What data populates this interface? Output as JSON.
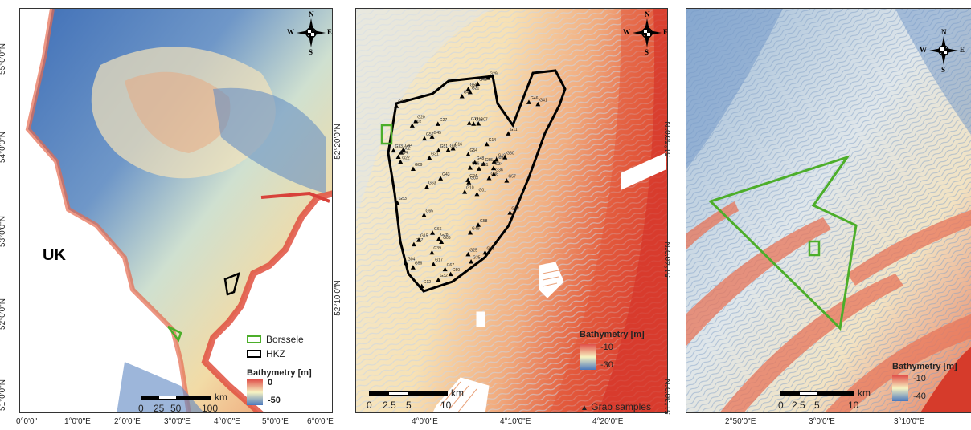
{
  "panel1": {
    "y_ticks": [
      "55°0'0\"N",
      "54°0'0\"N",
      "53°0'0\"N",
      "52°0'0\"N",
      "51°0'0\"N"
    ],
    "x_ticks": [
      "0°0'0\"",
      "1°0'0\"E",
      "2°0'0\"E",
      "3°0'0\"E",
      "4°0'0\"E",
      "5°0'0\"E",
      "6°0'0\"E"
    ],
    "country_label": "UK",
    "legend": {
      "borssele": "Borssele",
      "hkz": "HKZ",
      "borssele_color": "#4cae2a",
      "hkz_color": "#000000"
    },
    "bathymetry": {
      "title": "Bathymetry [m]",
      "max": "0",
      "min": "-50"
    },
    "scale": {
      "labels": [
        "0",
        "25",
        "50",
        "100"
      ],
      "unit": "km"
    },
    "compass": {
      "n": "N",
      "s": "S",
      "e": "E",
      "w": "W"
    }
  },
  "panel2": {
    "y_ticks": [
      "52°20'0\"N",
      "52°10'0\"N"
    ],
    "x_ticks": [
      "4°0'0\"E",
      "4°10'0\"E",
      "4°20'0\"E"
    ],
    "bathymetry": {
      "title": "Bathymetry [m]",
      "max": "-10",
      "min": "-30"
    },
    "scale": {
      "labels": [
        "0",
        "2.5",
        "5",
        "10"
      ],
      "unit": "km"
    },
    "grab_legend": "Grab samples",
    "grab_symbol": "▲",
    "compass": {
      "n": "N",
      "s": "S",
      "e": "E",
      "w": "W"
    },
    "samples": [
      "G01",
      "G02",
      "G03",
      "G04",
      "G05",
      "G06",
      "G07",
      "G08",
      "G09",
      "G10",
      "G11",
      "G12",
      "G13",
      "G14",
      "G15",
      "G16",
      "G17",
      "G18",
      "G19",
      "G20",
      "G21",
      "G22",
      "G23",
      "G24",
      "G25",
      "G26",
      "G27",
      "G28",
      "G29",
      "G30",
      "G31",
      "G32",
      "G33",
      "G34",
      "G35",
      "G36",
      "G37",
      "G38",
      "G39",
      "G40",
      "G41",
      "G42",
      "G43",
      "G44",
      "G45",
      "G46",
      "G47",
      "G48",
      "G49",
      "G50",
      "G51",
      "G52",
      "G53",
      "G54",
      "G55",
      "G56",
      "G57",
      "G58",
      "G59",
      "G60",
      "G61",
      "G62",
      "G63",
      "G64",
      "G65",
      "G66",
      "G67"
    ]
  },
  "panel3": {
    "y_ticks": [
      "51°50'0\"N",
      "51°40'0\"N",
      "51°30'0\"N"
    ],
    "x_ticks": [
      "2°50'0\"E",
      "3°0'0\"E",
      "3°10'0\"E"
    ],
    "bathymetry": {
      "title": "Bathymetry [m]",
      "max": "-10",
      "min": "-40"
    },
    "scale": {
      "labels": [
        "0",
        "2.5",
        "5",
        "10"
      ],
      "unit": "km"
    },
    "compass": {
      "n": "N",
      "s": "S",
      "e": "E",
      "w": "W"
    }
  }
}
